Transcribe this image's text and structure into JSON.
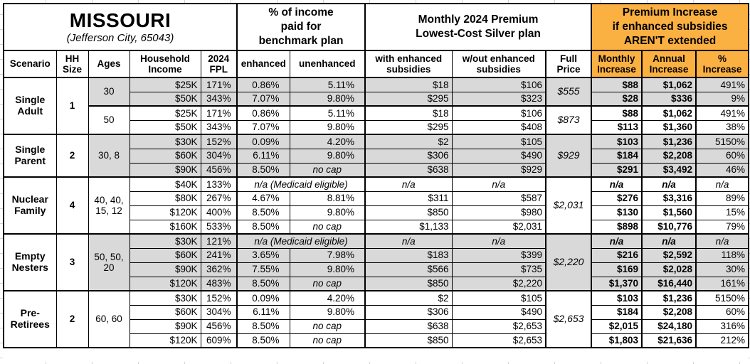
{
  "title": {
    "state": "MISSOURI",
    "location": "(Jefferson City, 65043)"
  },
  "header_groups": {
    "benchmark": "% of income\npaid for\nbenchmark plan",
    "premium": "Monthly 2024 Premium\nLowest-Cost Silver plan",
    "increase": "Premium Increase\nif enhanced subsidies\nAREN'T extended"
  },
  "columns": {
    "scenario": "Scenario",
    "hh_size": "HH\nSize",
    "ages": "Ages",
    "household_income": "Household\nIncome",
    "fpl": "2024\nFPL",
    "enhanced": "enhanced",
    "unenhanced": "unenhanced",
    "with_subsidies": "with enhanced\nsubsidies",
    "without_subsidies": "w/out enhanced\nsubsidies",
    "full_price": "Full\nPrice",
    "monthly_increase": "Monthly\nIncrease",
    "annual_increase": "Annual\nIncrease",
    "pct_increase": "%\nIncrease"
  },
  "labels": {
    "medicaid": "n/a (Medicaid eligible)",
    "no_cap": "no cap",
    "na": "n/a"
  },
  "colors": {
    "orange": "#FBB042",
    "shaded": "#D9D9D9",
    "border": "#000000"
  },
  "scenarios": [
    {
      "name": "Single\nAdult",
      "hh_size": "1",
      "subgroups": [
        {
          "ages": "30",
          "shaded": true,
          "full_price": "$555",
          "rows": [
            {
              "income": "$25K",
              "fpl": "171%",
              "enhanced": "0.86%",
              "unenhanced": "5.11%",
              "with_sub": "$18",
              "without_sub": "$106",
              "monthly": "$88",
              "annual": "$1,062",
              "pct": "491%"
            },
            {
              "income": "$50K",
              "fpl": "343%",
              "enhanced": "7.07%",
              "unenhanced": "9.80%",
              "with_sub": "$295",
              "without_sub": "$323",
              "monthly": "$28",
              "annual": "$336",
              "pct": "9%"
            }
          ]
        },
        {
          "ages": "50",
          "shaded": false,
          "full_price": "$873",
          "rows": [
            {
              "income": "$25K",
              "fpl": "171%",
              "enhanced": "0.86%",
              "unenhanced": "5.11%",
              "with_sub": "$18",
              "without_sub": "$106",
              "monthly": "$88",
              "annual": "$1,062",
              "pct": "491%"
            },
            {
              "income": "$50K",
              "fpl": "343%",
              "enhanced": "7.07%",
              "unenhanced": "9.80%",
              "with_sub": "$295",
              "without_sub": "$408",
              "monthly": "$113",
              "annual": "$1,360",
              "pct": "38%"
            }
          ]
        }
      ]
    },
    {
      "name": "Single\nParent",
      "hh_size": "2",
      "subgroups": [
        {
          "ages": "30, 8",
          "shaded": true,
          "full_price": "$929",
          "rows": [
            {
              "income": "$30K",
              "fpl": "152%",
              "enhanced": "0.09%",
              "unenhanced": "4.20%",
              "with_sub": "$2",
              "without_sub": "$105",
              "monthly": "$103",
              "annual": "$1,236",
              "pct": "5150%"
            },
            {
              "income": "$60K",
              "fpl": "304%",
              "enhanced": "6.11%",
              "unenhanced": "9.80%",
              "with_sub": "$306",
              "without_sub": "$490",
              "monthly": "$184",
              "annual": "$2,208",
              "pct": "60%"
            },
            {
              "income": "$90K",
              "fpl": "456%",
              "enhanced": "8.50%",
              "unenhanced": "no cap",
              "with_sub": "$638",
              "without_sub": "$929",
              "monthly": "$291",
              "annual": "$3,492",
              "pct": "46%"
            }
          ]
        }
      ]
    },
    {
      "name": "Nuclear\nFamily",
      "hh_size": "4",
      "subgroups": [
        {
          "ages": "40, 40,\n15, 12",
          "shaded": false,
          "full_price": "$2,031",
          "rows": [
            {
              "income": "$40K",
              "fpl": "133%",
              "medicaid": true,
              "with_sub": "n/a",
              "without_sub": "n/a",
              "monthly": "n/a",
              "annual": "n/a",
              "pct": "n/a"
            },
            {
              "income": "$80K",
              "fpl": "267%",
              "enhanced": "4.67%",
              "unenhanced": "8.81%",
              "with_sub": "$311",
              "without_sub": "$587",
              "monthly": "$276",
              "annual": "$3,316",
              "pct": "89%"
            },
            {
              "income": "$120K",
              "fpl": "400%",
              "enhanced": "8.50%",
              "unenhanced": "9.80%",
              "with_sub": "$850",
              "without_sub": "$980",
              "monthly": "$130",
              "annual": "$1,560",
              "pct": "15%"
            },
            {
              "income": "$160K",
              "fpl": "533%",
              "enhanced": "8.50%",
              "unenhanced": "no cap",
              "with_sub": "$1,133",
              "without_sub": "$2,031",
              "monthly": "$898",
              "annual": "$10,776",
              "pct": "79%"
            }
          ]
        }
      ]
    },
    {
      "name": "Empty\nNesters",
      "hh_size": "3",
      "subgroups": [
        {
          "ages": "50, 50,\n20",
          "shaded": true,
          "full_price": "$2,220",
          "rows": [
            {
              "income": "$30K",
              "fpl": "121%",
              "medicaid": true,
              "with_sub": "n/a",
              "without_sub": "n/a",
              "monthly": "n/a",
              "annual": "n/a",
              "pct": "n/a"
            },
            {
              "income": "$60K",
              "fpl": "241%",
              "enhanced": "3.65%",
              "unenhanced": "7.98%",
              "with_sub": "$183",
              "without_sub": "$399",
              "monthly": "$216",
              "annual": "$2,592",
              "pct": "118%"
            },
            {
              "income": "$90K",
              "fpl": "362%",
              "enhanced": "7.55%",
              "unenhanced": "9.80%",
              "with_sub": "$566",
              "without_sub": "$735",
              "monthly": "$169",
              "annual": "$2,028",
              "pct": "30%"
            },
            {
              "income": "$120K",
              "fpl": "483%",
              "enhanced": "8.50%",
              "unenhanced": "no cap",
              "with_sub": "$850",
              "without_sub": "$2,220",
              "monthly": "$1,370",
              "annual": "$16,440",
              "pct": "161%"
            }
          ]
        }
      ]
    },
    {
      "name": "Pre-\nRetirees",
      "hh_size": "2",
      "subgroups": [
        {
          "ages": "60, 60",
          "shaded": false,
          "full_price": "$2,653",
          "rows": [
            {
              "income": "$30K",
              "fpl": "152%",
              "enhanced": "0.09%",
              "unenhanced": "4.20%",
              "with_sub": "$2",
              "without_sub": "$105",
              "monthly": "$103",
              "annual": "$1,236",
              "pct": "5150%"
            },
            {
              "income": "$60K",
              "fpl": "304%",
              "enhanced": "6.11%",
              "unenhanced": "9.80%",
              "with_sub": "$306",
              "without_sub": "$490",
              "monthly": "$184",
              "annual": "$2,208",
              "pct": "60%"
            },
            {
              "income": "$90K",
              "fpl": "456%",
              "enhanced": "8.50%",
              "unenhanced": "no cap",
              "with_sub": "$638",
              "without_sub": "$2,653",
              "monthly": "$2,015",
              "annual": "$24,180",
              "pct": "316%"
            },
            {
              "income": "$120K",
              "fpl": "609%",
              "enhanced": "8.50%",
              "unenhanced": "no cap",
              "with_sub": "$850",
              "without_sub": "$2,653",
              "monthly": "$1,803",
              "annual": "$21,636",
              "pct": "212%"
            }
          ]
        }
      ]
    }
  ]
}
